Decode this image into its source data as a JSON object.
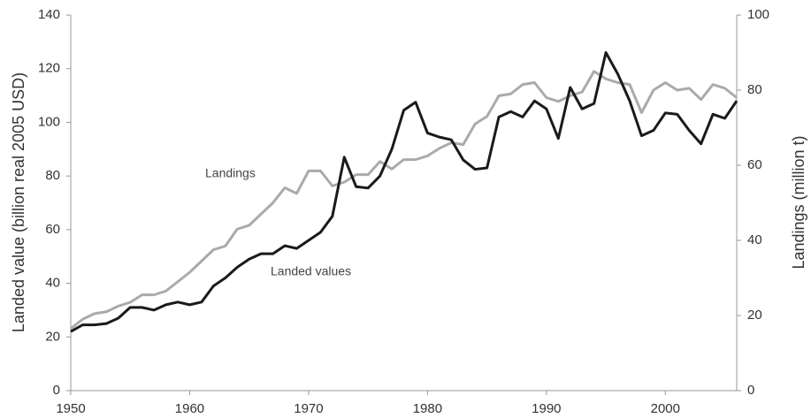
{
  "chart_data": {
    "type": "line",
    "y_label": "Landed value (billion real 2005 USD)",
    "y2_label": "Landings (million t)",
    "x": [
      1950,
      1951,
      1952,
      1953,
      1954,
      1955,
      1956,
      1957,
      1958,
      1959,
      1960,
      1961,
      1962,
      1963,
      1964,
      1965,
      1966,
      1967,
      1968,
      1969,
      1970,
      1971,
      1972,
      1973,
      1974,
      1975,
      1976,
      1977,
      1978,
      1979,
      1980,
      1981,
      1982,
      1983,
      1984,
      1985,
      1986,
      1987,
      1988,
      1989,
      1990,
      1991,
      1992,
      1993,
      1994,
      1995,
      1996,
      1997,
      1998,
      1999,
      2000,
      2001,
      2002,
      2003,
      2004,
      2005,
      2006
    ],
    "series": [
      {
        "name": "Landed values",
        "color": "#1a1a1a",
        "axis": "y",
        "values": [
          22,
          24.5,
          24.5,
          25,
          27,
          31,
          31,
          30,
          32,
          33,
          32,
          33,
          39,
          42,
          46,
          49,
          51,
          51,
          54,
          53,
          56,
          59,
          65,
          87,
          76,
          75.5,
          80,
          90,
          104.5,
          107.5,
          96,
          94.5,
          93.5,
          86,
          82.5,
          83,
          102,
          104,
          102,
          108,
          105,
          94,
          113,
          105,
          107,
          126,
          118,
          108,
          95,
          97,
          103.5,
          103,
          97,
          92,
          103,
          101.5,
          108
        ]
      },
      {
        "name": "Landings",
        "color": "#aaaaaa",
        "axis": "y2",
        "values": [
          16.5,
          19,
          20.5,
          21,
          22.5,
          23.5,
          25.5,
          25.5,
          26.5,
          29,
          31.5,
          34.5,
          37.5,
          38.5,
          43,
          44,
          47,
          50,
          54,
          52.5,
          58.5,
          58.5,
          54.5,
          55.5,
          57.5,
          57.5,
          61,
          59,
          61.5,
          61.5,
          62.5,
          64.5,
          66,
          65.5,
          71,
          73,
          78.5,
          79,
          81.5,
          82,
          78,
          77,
          78.5,
          79.5,
          85,
          83,
          82,
          81.5,
          74,
          80,
          82,
          80,
          80.5,
          77.5,
          81.5,
          80.5,
          78
        ]
      }
    ],
    "xlim": [
      1950,
      2006
    ],
    "xticks": [
      1950,
      1960,
      1970,
      1980,
      1990,
      2000
    ],
    "ylim": [
      0,
      140
    ],
    "yticks": [
      0,
      20,
      40,
      60,
      80,
      100,
      120,
      140
    ],
    "y2lim": [
      0,
      100
    ],
    "y2ticks": [
      0,
      20,
      40,
      60,
      80,
      100
    ],
    "grid": false
  }
}
